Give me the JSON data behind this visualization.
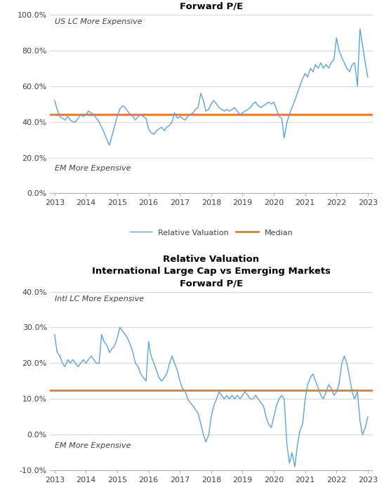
{
  "chart1": {
    "title": "Relative Valuation\nUS Large Cap vs Emerging Markets\nForward P/E",
    "label_top": "US LC More Expensive",
    "label_bottom": "EM More Expensive",
    "median": 0.44,
    "ylim": [
      0.0,
      1.0
    ],
    "yticks": [
      0.0,
      0.2,
      0.4,
      0.6,
      0.8,
      1.0
    ],
    "yticklabels": [
      "0.0%",
      "20.0%",
      "40.0%",
      "60.0%",
      "80.0%",
      "100.0%"
    ],
    "line_color": "#5BA3D9",
    "median_color": "#E8782A",
    "years": [
      2013,
      2014,
      2015,
      2016,
      2017,
      2018,
      2019,
      2020,
      2021,
      2022,
      2023
    ],
    "x": [
      2013.0,
      2013.08,
      2013.17,
      2013.25,
      2013.33,
      2013.42,
      2013.5,
      2013.58,
      2013.67,
      2013.75,
      2013.83,
      2013.92,
      2014.0,
      2014.08,
      2014.17,
      2014.25,
      2014.33,
      2014.42,
      2014.5,
      2014.58,
      2014.67,
      2014.75,
      2014.83,
      2014.92,
      2015.0,
      2015.08,
      2015.17,
      2015.25,
      2015.33,
      2015.42,
      2015.5,
      2015.58,
      2015.67,
      2015.75,
      2015.83,
      2015.92,
      2016.0,
      2016.08,
      2016.17,
      2016.25,
      2016.33,
      2016.42,
      2016.5,
      2016.58,
      2016.67,
      2016.75,
      2016.83,
      2016.92,
      2017.0,
      2017.08,
      2017.17,
      2017.25,
      2017.33,
      2017.42,
      2017.5,
      2017.58,
      2017.67,
      2017.75,
      2017.83,
      2017.92,
      2018.0,
      2018.08,
      2018.17,
      2018.25,
      2018.33,
      2018.42,
      2018.5,
      2018.58,
      2018.67,
      2018.75,
      2018.83,
      2018.92,
      2019.0,
      2019.08,
      2019.17,
      2019.25,
      2019.33,
      2019.42,
      2019.5,
      2019.58,
      2019.67,
      2019.75,
      2019.83,
      2019.92,
      2020.0,
      2020.08,
      2020.17,
      2020.25,
      2020.33,
      2020.42,
      2020.5,
      2020.58,
      2020.67,
      2020.75,
      2020.83,
      2020.92,
      2021.0,
      2021.08,
      2021.17,
      2021.25,
      2021.33,
      2021.42,
      2021.5,
      2021.58,
      2021.67,
      2021.75,
      2021.83,
      2021.92,
      2022.0,
      2022.08,
      2022.17,
      2022.25,
      2022.33,
      2022.42,
      2022.5,
      2022.58,
      2022.67,
      2022.75,
      2022.83,
      2022.92,
      2023.0
    ],
    "y": [
      0.52,
      0.47,
      0.43,
      0.42,
      0.41,
      0.43,
      0.41,
      0.4,
      0.4,
      0.42,
      0.44,
      0.43,
      0.44,
      0.46,
      0.45,
      0.44,
      0.42,
      0.4,
      0.37,
      0.34,
      0.3,
      0.27,
      0.32,
      0.38,
      0.43,
      0.47,
      0.49,
      0.48,
      0.46,
      0.44,
      0.43,
      0.41,
      0.43,
      0.44,
      0.43,
      0.42,
      0.36,
      0.34,
      0.33,
      0.35,
      0.36,
      0.37,
      0.35,
      0.37,
      0.38,
      0.4,
      0.45,
      0.42,
      0.43,
      0.42,
      0.41,
      0.43,
      0.44,
      0.45,
      0.47,
      0.48,
      0.56,
      0.52,
      0.46,
      0.47,
      0.5,
      0.52,
      0.5,
      0.48,
      0.47,
      0.46,
      0.47,
      0.46,
      0.47,
      0.48,
      0.46,
      0.44,
      0.45,
      0.46,
      0.47,
      0.48,
      0.5,
      0.51,
      0.49,
      0.48,
      0.49,
      0.5,
      0.51,
      0.5,
      0.51,
      0.47,
      0.43,
      0.42,
      0.31,
      0.4,
      0.44,
      0.48,
      0.52,
      0.56,
      0.6,
      0.64,
      0.67,
      0.65,
      0.7,
      0.68,
      0.72,
      0.7,
      0.73,
      0.7,
      0.72,
      0.7,
      0.73,
      0.75,
      0.87,
      0.8,
      0.76,
      0.73,
      0.7,
      0.68,
      0.72,
      0.73,
      0.6,
      0.92,
      0.83,
      0.73,
      0.65
    ]
  },
  "chart2": {
    "title": "Relative Valuation\nInternational Large Cap vs Emerging Markets\nForward P/E",
    "label_top": "Intl LC More Expensive",
    "label_bottom": "EM More Expensive",
    "median": 0.125,
    "ylim": [
      -0.1,
      0.4
    ],
    "yticks": [
      -0.1,
      0.0,
      0.1,
      0.2,
      0.3,
      0.4
    ],
    "yticklabels": [
      "-10.0%",
      "0.0%",
      "10.0%",
      "20.0%",
      "30.0%",
      "40.0%"
    ],
    "line_color": "#5BA3D9",
    "median_color": "#E8782A",
    "years": [
      2013,
      2014,
      2015,
      2016,
      2017,
      2018,
      2019,
      2020,
      2021,
      2022,
      2023
    ],
    "x": [
      2013.0,
      2013.08,
      2013.17,
      2013.25,
      2013.33,
      2013.42,
      2013.5,
      2013.58,
      2013.67,
      2013.75,
      2013.83,
      2013.92,
      2014.0,
      2014.08,
      2014.17,
      2014.25,
      2014.33,
      2014.42,
      2014.5,
      2014.58,
      2014.67,
      2014.75,
      2014.83,
      2014.92,
      2015.0,
      2015.08,
      2015.17,
      2015.25,
      2015.33,
      2015.42,
      2015.5,
      2015.58,
      2015.67,
      2015.75,
      2015.83,
      2015.92,
      2016.0,
      2016.08,
      2016.17,
      2016.25,
      2016.33,
      2016.42,
      2016.5,
      2016.58,
      2016.67,
      2016.75,
      2016.83,
      2016.92,
      2017.0,
      2017.08,
      2017.17,
      2017.25,
      2017.33,
      2017.42,
      2017.5,
      2017.58,
      2017.67,
      2017.75,
      2017.83,
      2017.92,
      2018.0,
      2018.08,
      2018.17,
      2018.25,
      2018.33,
      2018.42,
      2018.5,
      2018.58,
      2018.67,
      2018.75,
      2018.83,
      2018.92,
      2019.0,
      2019.08,
      2019.17,
      2019.25,
      2019.33,
      2019.42,
      2019.5,
      2019.58,
      2019.67,
      2019.75,
      2019.83,
      2019.92,
      2020.0,
      2020.08,
      2020.17,
      2020.25,
      2020.33,
      2020.42,
      2020.5,
      2020.58,
      2020.67,
      2020.75,
      2020.83,
      2020.92,
      2021.0,
      2021.08,
      2021.17,
      2021.25,
      2021.33,
      2021.42,
      2021.5,
      2021.58,
      2021.67,
      2021.75,
      2021.83,
      2021.92,
      2022.0,
      2022.08,
      2022.17,
      2022.25,
      2022.33,
      2022.42,
      2022.5,
      2022.58,
      2022.67,
      2022.75,
      2022.83,
      2022.92,
      2023.0
    ],
    "y": [
      0.28,
      0.23,
      0.22,
      0.2,
      0.19,
      0.21,
      0.2,
      0.21,
      0.2,
      0.19,
      0.2,
      0.21,
      0.2,
      0.21,
      0.22,
      0.21,
      0.2,
      0.2,
      0.28,
      0.26,
      0.25,
      0.23,
      0.24,
      0.25,
      0.27,
      0.3,
      0.29,
      0.28,
      0.27,
      0.25,
      0.23,
      0.2,
      0.19,
      0.17,
      0.16,
      0.15,
      0.26,
      0.22,
      0.2,
      0.18,
      0.16,
      0.15,
      0.16,
      0.17,
      0.2,
      0.22,
      0.2,
      0.18,
      0.15,
      0.13,
      0.12,
      0.1,
      0.09,
      0.08,
      0.07,
      0.06,
      0.03,
      0.0,
      -0.02,
      0.0,
      0.05,
      0.08,
      0.1,
      0.12,
      0.11,
      0.1,
      0.11,
      0.1,
      0.11,
      0.1,
      0.11,
      0.1,
      0.11,
      0.12,
      0.11,
      0.1,
      0.1,
      0.11,
      0.1,
      0.09,
      0.08,
      0.05,
      0.03,
      0.02,
      0.05,
      0.08,
      0.1,
      0.11,
      0.1,
      -0.03,
      -0.08,
      -0.05,
      -0.09,
      -0.03,
      0.01,
      0.03,
      0.1,
      0.14,
      0.16,
      0.17,
      0.15,
      0.13,
      0.11,
      0.1,
      0.12,
      0.14,
      0.13,
      0.11,
      0.12,
      0.14,
      0.2,
      0.22,
      0.2,
      0.16,
      0.12,
      0.1,
      0.12,
      0.04,
      0.0,
      0.02,
      0.05
    ]
  },
  "bg_color": "#ffffff",
  "grid_color": "#d0d0d0",
  "text_color": "#404040"
}
